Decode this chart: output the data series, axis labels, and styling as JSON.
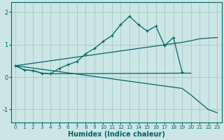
{
  "xlabel": "Humidex (Indice chaleur)",
  "xlim": [
    -0.5,
    23.5
  ],
  "ylim": [
    -1.4,
    2.3
  ],
  "background_color": "#cce5e5",
  "grid_color": "#aacccc",
  "line_color": "#006666",
  "lines": [
    {
      "x": [
        0,
        1,
        2,
        3,
        4,
        5,
        6,
        7,
        8,
        9,
        10,
        11,
        12,
        13,
        14,
        15,
        16,
        17,
        18,
        19
      ],
      "y": [
        0.35,
        0.22,
        0.2,
        0.12,
        0.1,
        0.27,
        0.38,
        0.48,
        0.72,
        0.88,
        1.1,
        1.28,
        1.62,
        1.87,
        1.62,
        1.42,
        1.57,
        0.97,
        1.22,
        0.15
      ],
      "marker": true
    },
    {
      "x": [
        0,
        1,
        2,
        3,
        4,
        19,
        20
      ],
      "y": [
        0.35,
        0.22,
        0.2,
        0.12,
        0.1,
        0.12,
        0.12
      ],
      "marker": false
    },
    {
      "x": [
        0,
        19,
        20,
        21,
        22,
        23
      ],
      "y": [
        0.35,
        1.07,
        1.12,
        1.18,
        1.2,
        1.22
      ],
      "marker": false
    },
    {
      "x": [
        0,
        19,
        20,
        21,
        22,
        23
      ],
      "y": [
        0.35,
        -0.35,
        -0.55,
        -0.78,
        -1.0,
        -1.1
      ],
      "marker": false
    }
  ],
  "yticks": [
    -1,
    0,
    1,
    2
  ],
  "xticks": [
    0,
    1,
    2,
    3,
    4,
    5,
    6,
    7,
    8,
    9,
    10,
    11,
    12,
    13,
    14,
    15,
    16,
    17,
    18,
    19,
    20,
    21,
    22,
    23
  ],
  "tick_fontsize": 6,
  "xlabel_fontsize": 7
}
